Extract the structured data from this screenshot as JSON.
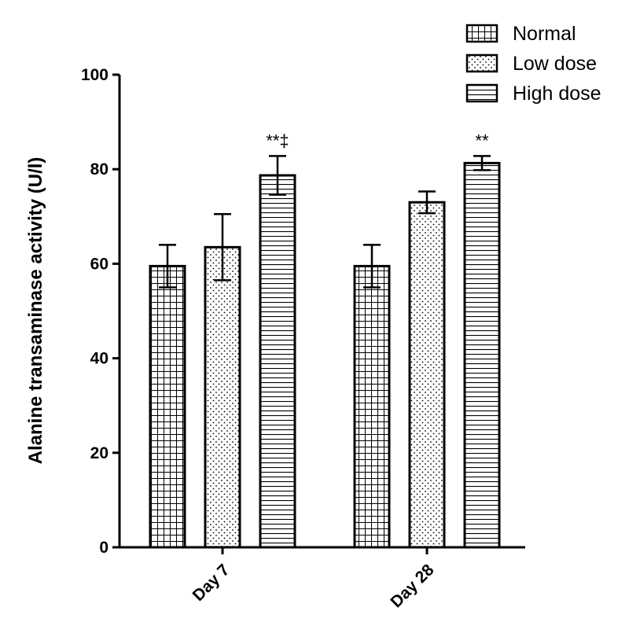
{
  "chart_data": {
    "type": "bar",
    "title": "",
    "xlabel": "",
    "ylabel": "Alanine transaminase activity (U/l)",
    "ylim": [
      0,
      100
    ],
    "yticks": [
      0,
      20,
      40,
      60,
      80,
      100
    ],
    "categories": [
      "Day 7",
      "Day 28"
    ],
    "series": [
      {
        "name": "Normal",
        "pattern": "grid",
        "values": [
          59.5,
          59.5
        ],
        "errors": [
          4.5,
          4.5
        ],
        "annotations": [
          "",
          ""
        ]
      },
      {
        "name": "Low dose",
        "pattern": "dots",
        "values": [
          63.5,
          73.0
        ],
        "errors": [
          7.0,
          2.3
        ],
        "annotations": [
          "",
          ""
        ]
      },
      {
        "name": "High dose",
        "pattern": "hlines",
        "values": [
          78.7,
          81.3
        ],
        "errors": [
          4.1,
          1.5
        ],
        "annotations": [
          "**‡",
          "**"
        ]
      }
    ],
    "legend_position": "top-right",
    "grid": false,
    "colors": {
      "bar_fill": "#ffffff",
      "stroke": "#000000"
    }
  }
}
